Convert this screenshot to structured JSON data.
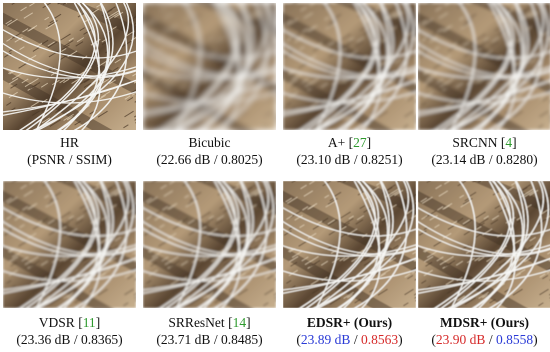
{
  "figure": {
    "panels": [
      {
        "name": "HR",
        "cite": "",
        "metrics_full": "(PSNR / SSIM)",
        "style": "sharp"
      },
      {
        "name": "Bicubic",
        "cite": "",
        "psnr": "22.66 dB",
        "ssim": "0.8025",
        "style": "blurry"
      },
      {
        "name": "A+",
        "cite": "27",
        "psnr": "23.10 dB",
        "ssim": "0.8251",
        "style": "soft"
      },
      {
        "name": "SRCNN",
        "cite": "4",
        "psnr": "23.14 dB",
        "ssim": "0.8280",
        "style": "soft"
      },
      {
        "name": "VDSR",
        "cite": "11",
        "psnr": "23.36 dB",
        "ssim": "0.8365",
        "style": "mid"
      },
      {
        "name": "SRResNet",
        "cite": "14",
        "psnr": "23.71 dB",
        "ssim": "0.8485",
        "style": "mid"
      },
      {
        "name": "EDSR+ (Ours)",
        "cite": "",
        "psnr": "23.89 dB",
        "ssim": "0.8563",
        "style": "good",
        "bold": true,
        "psnr_color": "#2a3ad6",
        "ssim_color": "#d62a2a"
      },
      {
        "name": "MDSR+ (Ours)",
        "cite": "",
        "psnr": "23.90 dB",
        "ssim": "0.8558",
        "style": "good",
        "bold": true,
        "psnr_color": "#d62a2a",
        "ssim_color": "#2a3ad6"
      }
    ]
  }
}
